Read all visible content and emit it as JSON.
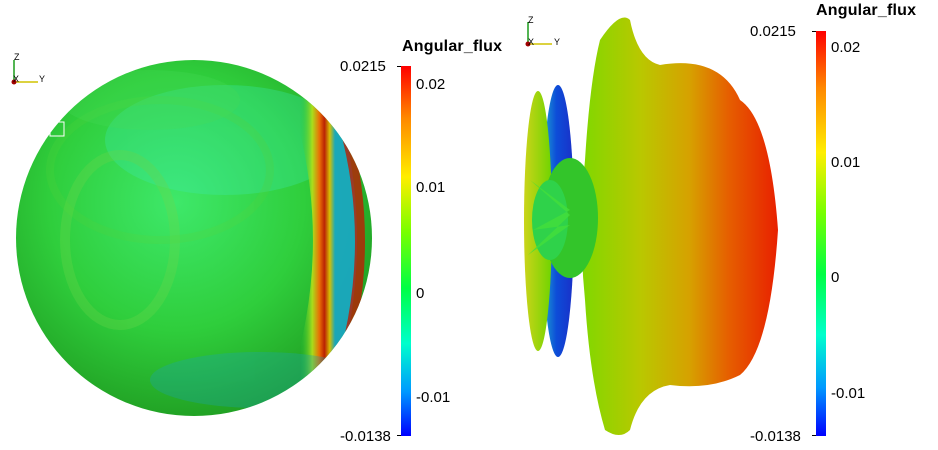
{
  "views": [
    {
      "id": "left",
      "mesh": "sphere",
      "colorbar": {
        "title": "Angular_flux",
        "range_min_label": "-0.0138",
        "range_max_label": "0.0215",
        "ticks": [
          "0.02",
          "0.01",
          "0",
          "-0.01"
        ],
        "colors": [
          "#ff0000",
          "#ff9900",
          "#ffff00",
          "#00ff00",
          "#00ffff",
          "#0000ff"
        ]
      },
      "axes": {
        "z": "Z",
        "x": "X",
        "y": "Y"
      }
    },
    {
      "id": "right",
      "mesh": "radial-lobe-surface",
      "colorbar": {
        "title": "Angular_flux",
        "range_min_label": "-0.0138",
        "range_max_label": "0.0215",
        "ticks": [
          "0.02",
          "0.01",
          "0",
          "-0.01"
        ],
        "colors": [
          "#ff0000",
          "#ff9900",
          "#ffff00",
          "#00ff00",
          "#00ffff",
          "#0000ff"
        ]
      },
      "axes": {
        "z": "Z",
        "x": "X",
        "y": "Y"
      }
    }
  ]
}
